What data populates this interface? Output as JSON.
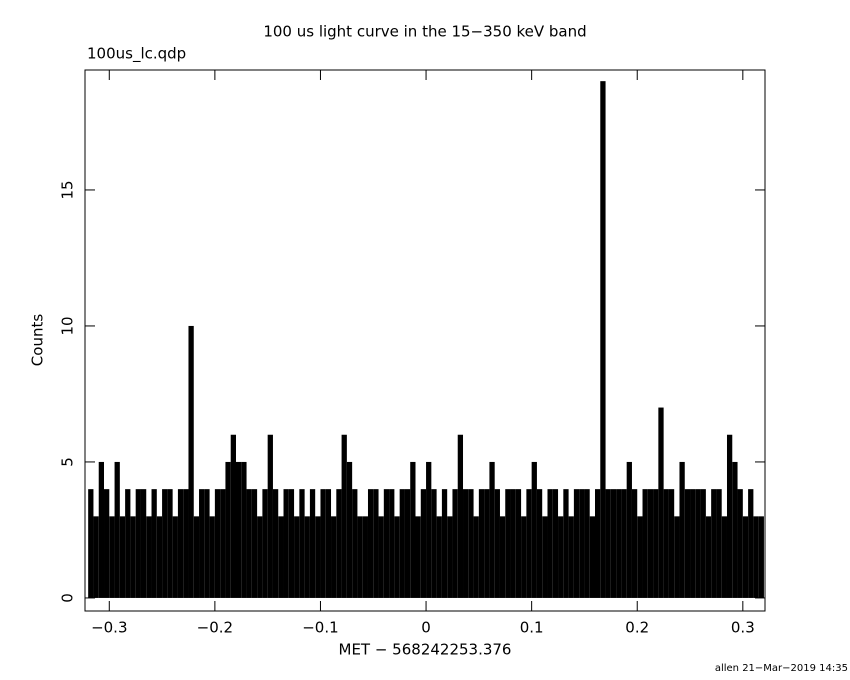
{
  "chart_data": {
    "type": "histogram",
    "title": "100 us light curve in the 15−350 keV band",
    "subtitle": "100us_lc.qdp",
    "x_label": "MET − 568242253.376",
    "y_label": "Counts",
    "footer": "allen 21−Mar−2019 14:35",
    "color": "#000000",
    "xlim": [
      -0.323,
      0.321
    ],
    "ylim": [
      -0.48,
      19.41
    ],
    "xticks": [
      {
        "value": -0.3,
        "label": "−0.3"
      },
      {
        "value": -0.2,
        "label": "−0.2"
      },
      {
        "value": -0.1,
        "label": "−0.1"
      },
      0,
      0.1,
      0.2,
      0.3
    ],
    "yticks": [
      0,
      5,
      10,
      15
    ],
    "bins": [
      -0.32,
      -0.315,
      -0.31,
      -0.305,
      -0.3,
      -0.295,
      -0.29,
      -0.285,
      -0.28,
      -0.275,
      -0.27,
      -0.265,
      -0.26,
      -0.255,
      -0.25,
      -0.245,
      -0.24,
      -0.235,
      -0.23,
      -0.225,
      -0.22,
      -0.215,
      -0.21,
      -0.205,
      -0.2,
      -0.195,
      -0.19,
      -0.185,
      -0.18,
      -0.175,
      -0.17,
      -0.165,
      -0.16,
      -0.155,
      -0.15,
      -0.145,
      -0.14,
      -0.135,
      -0.13,
      -0.125,
      -0.12,
      -0.115,
      -0.11,
      -0.105,
      -0.1,
      -0.095,
      -0.09,
      -0.085,
      -0.08,
      -0.075,
      -0.07,
      -0.065,
      -0.06,
      -0.055,
      -0.05,
      -0.045,
      -0.04,
      -0.035,
      -0.03,
      -0.025,
      -0.02,
      -0.015,
      -0.01,
      -0.005,
      0,
      0.005,
      0.01,
      0.015,
      0.02,
      0.025,
      0.03,
      0.035,
      0.04,
      0.045,
      0.05,
      0.055,
      0.06,
      0.065,
      0.07,
      0.075,
      0.08,
      0.085,
      0.09,
      0.095,
      0.1,
      0.105,
      0.11,
      0.115,
      0.12,
      0.125,
      0.13,
      0.135,
      0.14,
      0.145,
      0.15,
      0.155,
      0.16,
      0.165,
      0.17,
      0.175,
      0.18,
      0.185,
      0.19,
      0.195,
      0.2,
      0.205,
      0.21,
      0.215,
      0.22,
      0.225,
      0.23,
      0.235,
      0.24,
      0.245,
      0.25,
      0.255,
      0.26,
      0.265,
      0.27,
      0.275,
      0.28,
      0.285,
      0.29,
      0.295,
      0.3,
      0.305,
      0.31,
      0.315,
      0.32
    ],
    "values": [
      4,
      3,
      5,
      4,
      3,
      5,
      3,
      4,
      3,
      4,
      4,
      3,
      4,
      3,
      4,
      4,
      3,
      4,
      4,
      10,
      3,
      4,
      4,
      3,
      4,
      4,
      5,
      6,
      5,
      5,
      4,
      4,
      3,
      4,
      6,
      4,
      3,
      4,
      4,
      3,
      4,
      3,
      4,
      3,
      4,
      4,
      3,
      4,
      6,
      5,
      4,
      3,
      3,
      4,
      4,
      3,
      4,
      4,
      3,
      4,
      4,
      5,
      3,
      4,
      5,
      4,
      3,
      4,
      3,
      4,
      6,
      4,
      4,
      3,
      4,
      4,
      5,
      4,
      3,
      4,
      4,
      4,
      3,
      4,
      5,
      4,
      3,
      4,
      4,
      3,
      4,
      3,
      4,
      4,
      4,
      3,
      4,
      19,
      4,
      4,
      4,
      4,
      5,
      4,
      3,
      4,
      4,
      4,
      7,
      4,
      4,
      3,
      5,
      4,
      4,
      4,
      4,
      3,
      4,
      4,
      3,
      6,
      5,
      4,
      3,
      4,
      3,
      3
    ]
  }
}
